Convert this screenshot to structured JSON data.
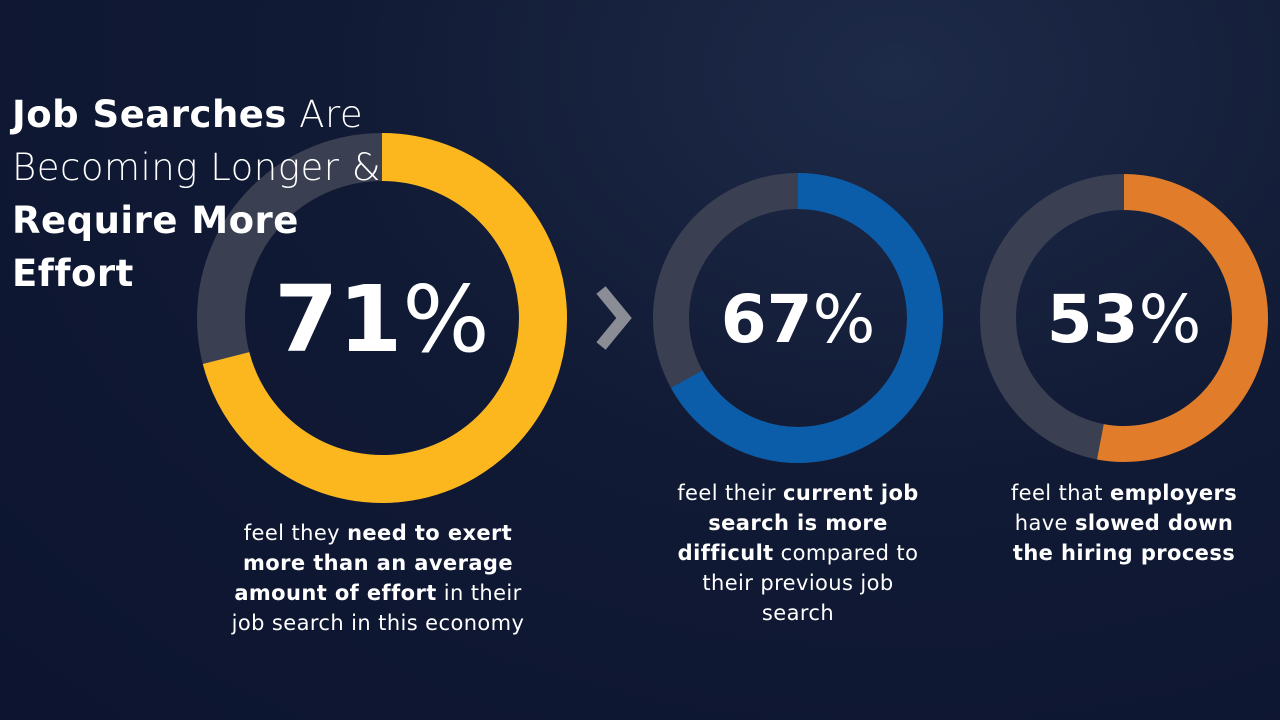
{
  "title": [
    "Job Searches",
    "Are Becoming Longer &",
    "Require More Effort"
  ],
  "chart_data": [
    {
      "type": "donut",
      "values": [
        71
      ],
      "value_labels": [
        "71%"
      ],
      "color": "#fcb71e",
      "description": [
        {
          "text": "feel they ",
          "bold": false
        },
        {
          "text": "need to exert more than an average amount of effort",
          "bold": true
        },
        {
          "text": " in their job search in this economy",
          "bold": false
        }
      ]
    },
    {
      "type": "donut",
      "values": [
        67
      ],
      "value_labels": [
        "67%"
      ],
      "color": "#0b5ca9",
      "description": [
        {
          "text": "feel their ",
          "bold": false
        },
        {
          "text": "current job search is more difficult",
          "bold": true
        },
        {
          "text": " compared to their previous job search",
          "bold": false
        }
      ]
    },
    {
      "type": "donut",
      "values": [
        53
      ],
      "value_labels": [
        "53%"
      ],
      "color": "#e07c2a",
      "description": [
        {
          "text": "feel that ",
          "bold": false
        },
        {
          "text": "employers",
          "bold": true
        },
        {
          "text": " have ",
          "bold": false
        },
        {
          "text": "slowed down the hiring process",
          "bold": true
        }
      ]
    }
  ]
}
